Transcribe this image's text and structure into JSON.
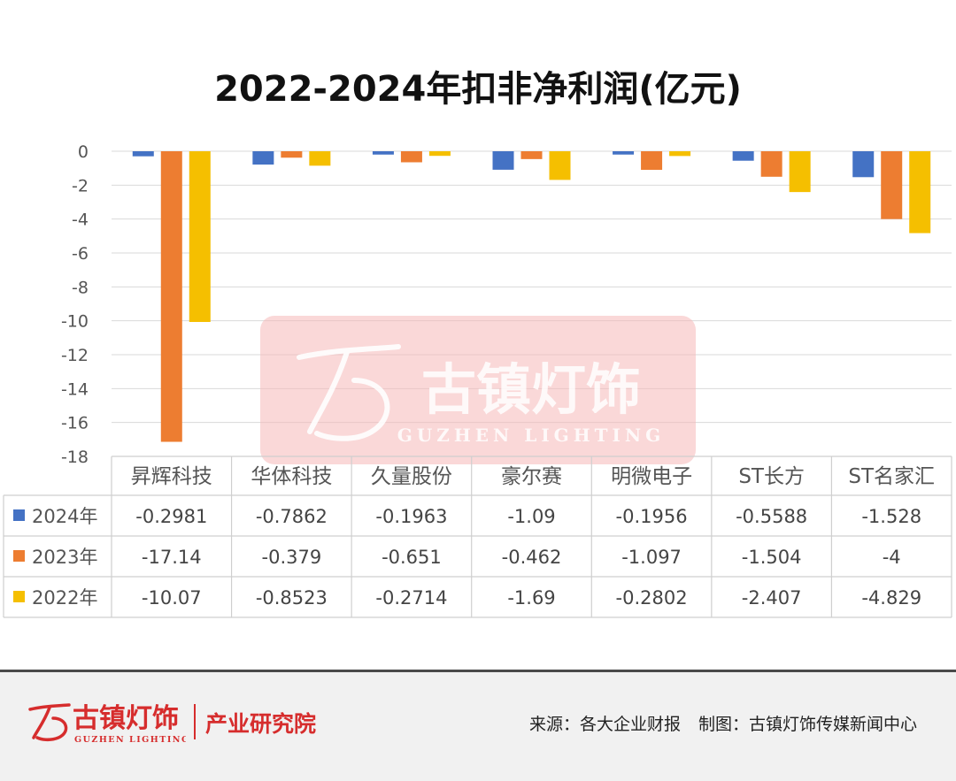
{
  "chart_data": {
    "type": "bar",
    "title": "2022-2024年扣非净利润(亿元)",
    "categories": [
      "昇辉科技",
      "华体科技",
      "久量股份",
      "豪尔赛",
      "明微电子",
      "ST长方",
      "ST名家汇"
    ],
    "series": [
      {
        "name": "2024年",
        "color": "#4472c4",
        "values": [
          -0.2981,
          -0.7862,
          -0.1963,
          -1.09,
          -0.1956,
          -0.5588,
          -1.528
        ],
        "labels": [
          "-0.2981",
          "-0.7862",
          "-0.1963",
          "-1.09",
          "-0.1956",
          "-0.5588",
          "-1.528"
        ]
      },
      {
        "name": "2023年",
        "color": "#ed7d31",
        "values": [
          -17.14,
          -0.379,
          -0.651,
          -0.462,
          -1.097,
          -1.504,
          -4
        ],
        "labels": [
          "-17.14",
          "-0.379",
          "-0.651",
          "-0.462",
          "-1.097",
          "-1.504",
          "-4"
        ]
      },
      {
        "name": "2022年",
        "color": "#f5bf00",
        "values": [
          -10.07,
          -0.8523,
          -0.2714,
          -1.69,
          -0.2802,
          -2.407,
          -4.829
        ],
        "labels": [
          "-10.07",
          "-0.8523",
          "-0.2714",
          "-1.69",
          "-0.2802",
          "-2.407",
          "-4.829"
        ]
      }
    ],
    "ylim": [
      -18,
      0
    ],
    "yticks": [
      0,
      -2,
      -4,
      -6,
      -8,
      -10,
      -12,
      -14,
      -16,
      -18
    ],
    "grid": true,
    "legend": "data-table"
  },
  "watermark": {
    "name": "古镇灯饰",
    "subtitle": "GUZHEN LIGHTING"
  },
  "footer": {
    "logo_text": "古镇灯饰",
    "logo_sub": "GUZHEN LIGHTING",
    "institute": "产业研究院",
    "source": "来源：各大企业财报",
    "credit": "制图：古镇灯饰传媒新闻中心"
  }
}
